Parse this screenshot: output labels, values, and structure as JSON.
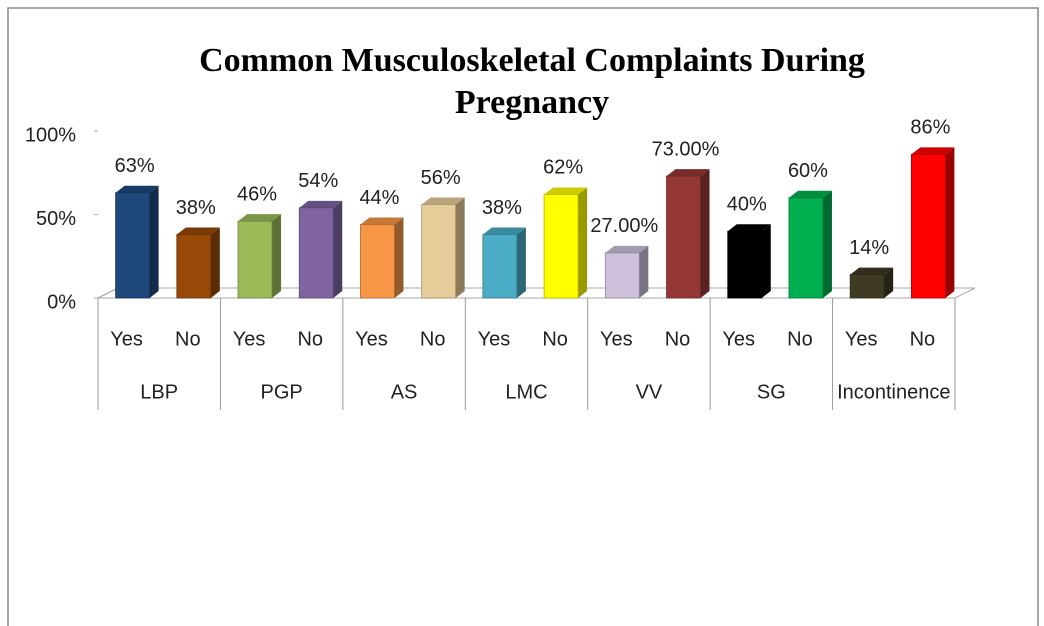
{
  "chart_data": {
    "type": "bar3d",
    "title": "Common Musculoskeletal Complaints During Pregnancy",
    "groups": [
      "LBP",
      "PGP",
      "AS",
      "LMC",
      "VV",
      "SG",
      "Incontinence"
    ],
    "categories": [
      "Yes",
      "No",
      "Yes",
      "No",
      "Yes",
      "No",
      "Yes",
      "No",
      "Yes",
      "No",
      "Yes",
      "No",
      "Yes",
      "No"
    ],
    "values": [
      63,
      38,
      46,
      54,
      44,
      56,
      38,
      62,
      27,
      73,
      40,
      60,
      14,
      86
    ],
    "value_labels": [
      "63%",
      "38%",
      "46%",
      "54%",
      "44%",
      "56%",
      "38%",
      "62%",
      "27.00%",
      "73.00%",
      "40%",
      "60%",
      "14%",
      "86%"
    ],
    "colors": [
      "#1f497d",
      "#984807",
      "#9bbb59",
      "#8064a2",
      "#f79646",
      "#e6cc98",
      "#4bacc6",
      "#ffff00",
      "#ccc0da",
      "#953735",
      "#000000",
      "#00b050",
      "#3f3a22",
      "#ff0000"
    ],
    "ylim": [
      0,
      100
    ],
    "yticks": [
      {
        "value": 0,
        "label": "0%"
      },
      {
        "value": 50,
        "label": "50%"
      },
      {
        "value": 100,
        "label": "100%"
      }
    ]
  }
}
